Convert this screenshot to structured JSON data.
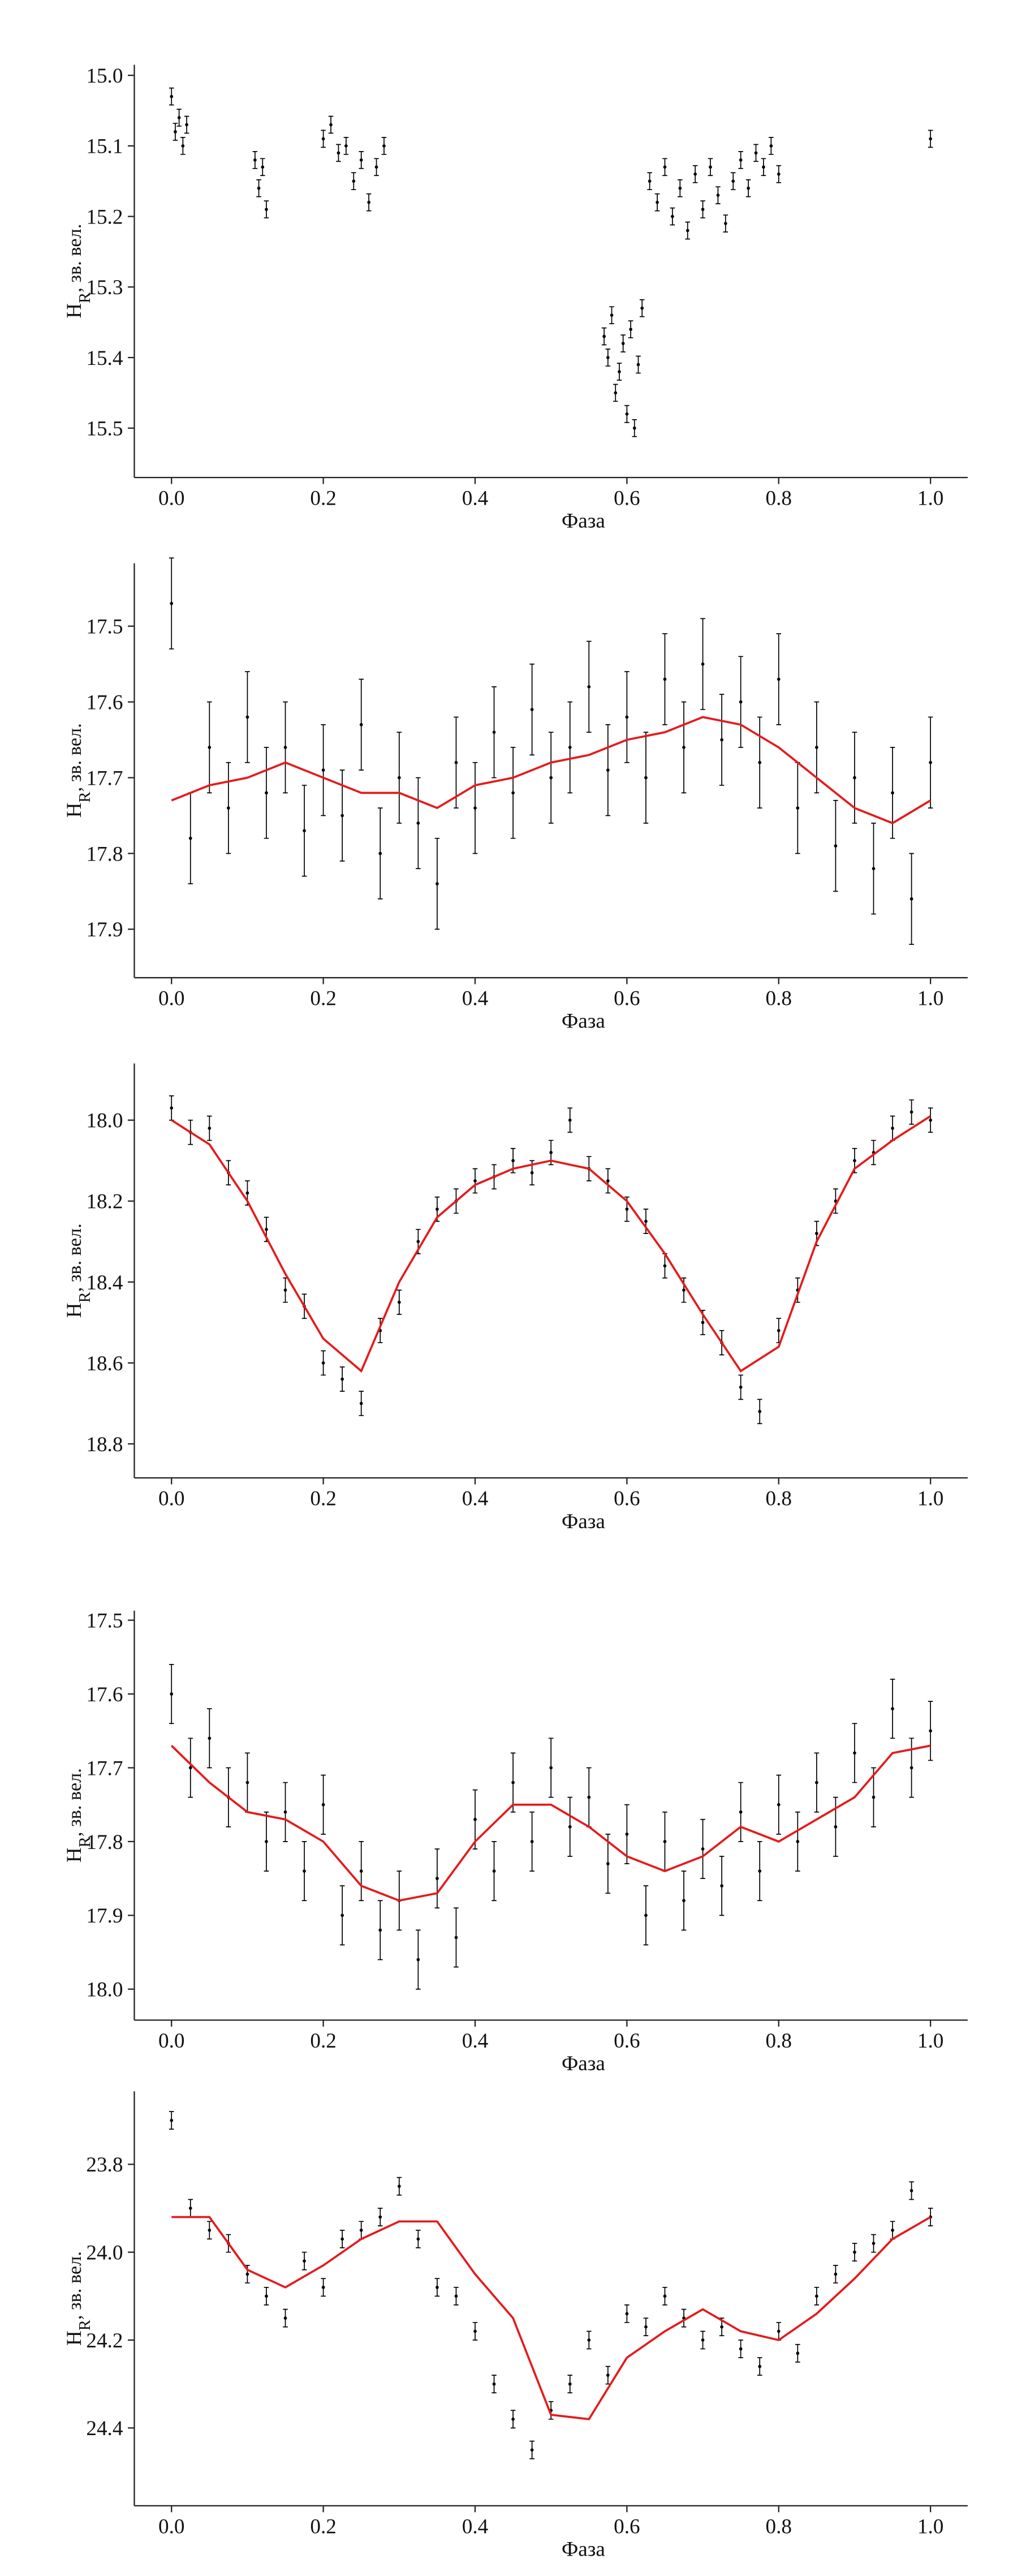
{
  "chart_data": [
    {
      "type": "scatter",
      "xlabel": "Фаза",
      "ylabel": [
        "H",
        "R",
        ", зв. вел."
      ],
      "xlim": [
        -0.049,
        1.049
      ],
      "ylim": [
        15.57,
        14.985
      ],
      "xticks": [
        {
          "value": 0,
          "label": "0.0"
        },
        0.2,
        0.4,
        0.6,
        0.8,
        {
          "value": 1,
          "label": "1.0"
        }
      ],
      "yticks": [
        {
          "value": 15,
          "label": "15.0"
        },
        15.1,
        15.2,
        15.3,
        15.4,
        15.5
      ],
      "series": [
        {
          "color": "#000000",
          "error": 0.012,
          "x": [
            0.0,
            0.005,
            0.01,
            0.015,
            0.02,
            0.11,
            0.115,
            0.12,
            0.125,
            0.2,
            0.21,
            0.22,
            0.23,
            0.24,
            0.25,
            0.26,
            0.27,
            0.28,
            0.57,
            0.575,
            0.58,
            0.585,
            0.59,
            0.595,
            0.6,
            0.605,
            0.61,
            0.615,
            0.62,
            0.63,
            0.64,
            0.65,
            0.66,
            0.67,
            0.68,
            0.69,
            0.7,
            0.71,
            0.72,
            0.73,
            0.74,
            0.75,
            0.76,
            0.77,
            0.78,
            0.79,
            0.8,
            1.0
          ],
          "values": [
            15.03,
            15.08,
            15.06,
            15.1,
            15.07,
            15.12,
            15.16,
            15.13,
            15.19,
            15.09,
            15.07,
            15.11,
            15.1,
            15.15,
            15.12,
            15.18,
            15.13,
            15.1,
            15.37,
            15.4,
            15.34,
            15.45,
            15.42,
            15.38,
            15.48,
            15.36,
            15.5,
            15.41,
            15.33,
            15.15,
            15.18,
            15.13,
            15.2,
            15.16,
            15.22,
            15.14,
            15.19,
            15.13,
            15.17,
            15.21,
            15.15,
            15.12,
            15.16,
            15.11,
            15.13,
            15.1,
            15.14,
            15.09
          ]
        }
      ]
    },
    {
      "type": "scatter",
      "xlabel": "Фаза",
      "ylabel": [
        "H",
        "R",
        ", зв. вел."
      ],
      "xlim": [
        -0.049,
        1.049
      ],
      "ylim": [
        17.964,
        17.417
      ],
      "xticks": [
        {
          "value": 0,
          "label": "0.0"
        },
        0.2,
        0.4,
        0.6,
        0.8,
        {
          "value": 1,
          "label": "1.0"
        }
      ],
      "yticks": [
        17.5,
        17.6,
        17.7,
        17.8,
        17.9
      ],
      "series": [
        {
          "color": "#000000",
          "error": 0.06,
          "x": [
            0,
            0.025,
            0.05,
            0.075,
            0.1,
            0.125,
            0.15,
            0.175,
            0.2,
            0.225,
            0.25,
            0.275,
            0.3,
            0.325,
            0.35,
            0.375,
            0.4,
            0.425,
            0.45,
            0.475,
            0.5,
            0.525,
            0.55,
            0.575,
            0.6,
            0.625,
            0.65,
            0.675,
            0.7,
            0.725,
            0.75,
            0.775,
            0.8,
            0.825,
            0.85,
            0.875,
            0.9,
            0.925,
            0.95,
            0.975,
            1.0
          ],
          "values": [
            17.47,
            17.78,
            17.66,
            17.74,
            17.62,
            17.72,
            17.66,
            17.77,
            17.69,
            17.75,
            17.63,
            17.8,
            17.7,
            17.76,
            17.84,
            17.68,
            17.74,
            17.64,
            17.72,
            17.61,
            17.7,
            17.66,
            17.58,
            17.69,
            17.62,
            17.7,
            17.57,
            17.66,
            17.55,
            17.65,
            17.6,
            17.68,
            17.57,
            17.74,
            17.66,
            17.79,
            17.7,
            17.82,
            17.72,
            17.86,
            17.68
          ]
        },
        {
          "color": "#e41a1c",
          "line": true,
          "x": [
            0,
            0.05,
            0.1,
            0.15,
            0.2,
            0.25,
            0.3,
            0.35,
            0.4,
            0.45,
            0.5,
            0.55,
            0.6,
            0.65,
            0.7,
            0.75,
            0.8,
            0.85,
            0.9,
            0.95,
            1.0
          ],
          "values": [
            17.73,
            17.71,
            17.7,
            17.68,
            17.7,
            17.72,
            17.72,
            17.74,
            17.71,
            17.7,
            17.68,
            17.67,
            17.65,
            17.64,
            17.62,
            17.63,
            17.66,
            17.7,
            17.74,
            17.76,
            17.73
          ]
        }
      ]
    },
    {
      "type": "scatter",
      "xlabel": "Фаза",
      "ylabel": [
        "H",
        "R",
        ", зв. вел."
      ],
      "xlim": [
        -0.049,
        1.049
      ],
      "ylim": [
        18.884,
        17.86
      ],
      "xticks": [
        {
          "value": 0,
          "label": "0.0"
        },
        0.2,
        0.4,
        0.6,
        0.8,
        {
          "value": 1,
          "label": "1.0"
        }
      ],
      "yticks": [
        {
          "value": 18,
          "label": "18.0"
        },
        18.2,
        18.4,
        18.6,
        18.8
      ],
      "series": [
        {
          "color": "#000000",
          "error": 0.03,
          "x": [
            0,
            0.025,
            0.05,
            0.075,
            0.1,
            0.125,
            0.15,
            0.175,
            0.2,
            0.225,
            0.25,
            0.275,
            0.3,
            0.325,
            0.35,
            0.375,
            0.4,
            0.425,
            0.45,
            0.475,
            0.5,
            0.525,
            0.55,
            0.575,
            0.6,
            0.625,
            0.65,
            0.675,
            0.7,
            0.725,
            0.75,
            0.775,
            0.8,
            0.825,
            0.85,
            0.875,
            0.9,
            0.925,
            0.95,
            0.975,
            1.0
          ],
          "values": [
            17.97,
            18.03,
            18.02,
            18.13,
            18.18,
            18.27,
            18.42,
            18.46,
            18.6,
            18.64,
            18.7,
            18.52,
            18.45,
            18.3,
            18.22,
            18.2,
            18.15,
            18.14,
            18.1,
            18.13,
            18.08,
            18.0,
            18.12,
            18.15,
            18.22,
            18.25,
            18.36,
            18.42,
            18.5,
            18.55,
            18.66,
            18.72,
            18.52,
            18.42,
            18.28,
            18.2,
            18.1,
            18.08,
            18.02,
            17.98,
            18.0
          ]
        },
        {
          "color": "#e41a1c",
          "line": true,
          "x": [
            0,
            0.05,
            0.1,
            0.15,
            0.2,
            0.25,
            0.3,
            0.35,
            0.4,
            0.45,
            0.5,
            0.55,
            0.6,
            0.65,
            0.7,
            0.75,
            0.8,
            0.85,
            0.9,
            0.95,
            1.0
          ],
          "values": [
            18.0,
            18.06,
            18.2,
            18.38,
            18.54,
            18.62,
            18.4,
            18.24,
            18.16,
            18.12,
            18.1,
            18.12,
            18.2,
            18.33,
            18.48,
            18.62,
            18.56,
            18.3,
            18.12,
            18.05,
            17.99
          ]
        }
      ]
    },
    {
      "type": "scatter",
      "xlabel": "Фаза",
      "ylabel": [
        "H",
        "R",
        ", зв. вел."
      ],
      "xlim": [
        -0.049,
        1.049
      ],
      "ylim": [
        18.042,
        17.487
      ],
      "xticks": [
        {
          "value": 0,
          "label": "0.0"
        },
        0.2,
        0.4,
        0.6,
        0.8,
        {
          "value": 1,
          "label": "1.0"
        }
      ],
      "yticks": [
        17.5,
        17.6,
        17.7,
        17.8,
        17.9,
        {
          "value": 18,
          "label": "18.0"
        }
      ],
      "series": [
        {
          "color": "#000000",
          "error": 0.04,
          "x": [
            0,
            0.025,
            0.05,
            0.075,
            0.1,
            0.125,
            0.15,
            0.175,
            0.2,
            0.225,
            0.25,
            0.275,
            0.3,
            0.325,
            0.35,
            0.375,
            0.4,
            0.425,
            0.45,
            0.475,
            0.5,
            0.525,
            0.55,
            0.575,
            0.6,
            0.625,
            0.65,
            0.675,
            0.7,
            0.725,
            0.75,
            0.775,
            0.8,
            0.825,
            0.85,
            0.875,
            0.9,
            0.925,
            0.95,
            0.975,
            1.0
          ],
          "values": [
            17.6,
            17.7,
            17.66,
            17.74,
            17.72,
            17.8,
            17.76,
            17.84,
            17.75,
            17.9,
            17.84,
            17.92,
            17.88,
            17.96,
            17.85,
            17.93,
            17.77,
            17.84,
            17.72,
            17.8,
            17.7,
            17.78,
            17.74,
            17.83,
            17.79,
            17.9,
            17.8,
            17.88,
            17.81,
            17.86,
            17.76,
            17.84,
            17.75,
            17.8,
            17.72,
            17.78,
            17.68,
            17.74,
            17.62,
            17.7,
            17.65
          ]
        },
        {
          "color": "#e41a1c",
          "line": true,
          "x": [
            0,
            0.05,
            0.1,
            0.15,
            0.2,
            0.25,
            0.3,
            0.35,
            0.4,
            0.45,
            0.5,
            0.55,
            0.6,
            0.65,
            0.7,
            0.75,
            0.8,
            0.85,
            0.9,
            0.95,
            1.0
          ],
          "values": [
            17.67,
            17.72,
            17.76,
            17.77,
            17.8,
            17.86,
            17.88,
            17.87,
            17.8,
            17.75,
            17.75,
            17.78,
            17.82,
            17.84,
            17.82,
            17.78,
            17.8,
            17.77,
            17.74,
            17.68,
            17.67
          ]
        }
      ]
    },
    {
      "type": "scatter",
      "xlabel": "Фаза",
      "ylabel": [
        "H",
        "R",
        ", зв. вел."
      ],
      "xlim": [
        -0.049,
        1.049
      ],
      "ylim": [
        24.577,
        23.634
      ],
      "xticks": [
        {
          "value": 0,
          "label": "0.0"
        },
        0.2,
        0.4,
        0.6,
        0.8,
        {
          "value": 1,
          "label": "1.0"
        }
      ],
      "yticks": [
        23.8,
        {
          "value": 24,
          "label": "24.0"
        },
        24.2,
        24.4
      ],
      "series": [
        {
          "color": "#000000",
          "error": 0.02,
          "x": [
            0,
            0.025,
            0.05,
            0.075,
            0.1,
            0.125,
            0.15,
            0.175,
            0.2,
            0.225,
            0.25,
            0.275,
            0.3,
            0.325,
            0.35,
            0.375,
            0.4,
            0.425,
            0.45,
            0.475,
            0.5,
            0.525,
            0.55,
            0.575,
            0.6,
            0.625,
            0.65,
            0.675,
            0.7,
            0.725,
            0.75,
            0.775,
            0.8,
            0.825,
            0.85,
            0.875,
            0.9,
            0.925,
            0.95,
            0.975,
            1.0
          ],
          "values": [
            23.7,
            23.9,
            23.95,
            23.98,
            24.05,
            24.1,
            24.15,
            24.02,
            24.08,
            23.97,
            23.95,
            23.92,
            23.85,
            23.97,
            24.08,
            24.1,
            24.18,
            24.3,
            24.38,
            24.45,
            24.36,
            24.3,
            24.2,
            24.28,
            24.14,
            24.17,
            24.1,
            24.15,
            24.2,
            24.17,
            24.22,
            24.26,
            24.18,
            24.23,
            24.1,
            24.05,
            24.0,
            23.98,
            23.95,
            23.86,
            23.92
          ]
        },
        {
          "color": "#e41a1c",
          "line": true,
          "x": [
            0,
            0.05,
            0.1,
            0.15,
            0.2,
            0.25,
            0.3,
            0.35,
            0.4,
            0.45,
            0.5,
            0.55,
            0.6,
            0.65,
            0.7,
            0.75,
            0.8,
            0.85,
            0.9,
            0.95,
            1.0
          ],
          "values": [
            23.92,
            23.92,
            24.04,
            24.08,
            24.03,
            23.97,
            23.93,
            23.93,
            24.05,
            24.15,
            24.37,
            24.38,
            24.24,
            24.18,
            24.13,
            24.18,
            24.2,
            24.14,
            24.06,
            23.97,
            23.92
          ]
        }
      ]
    }
  ]
}
